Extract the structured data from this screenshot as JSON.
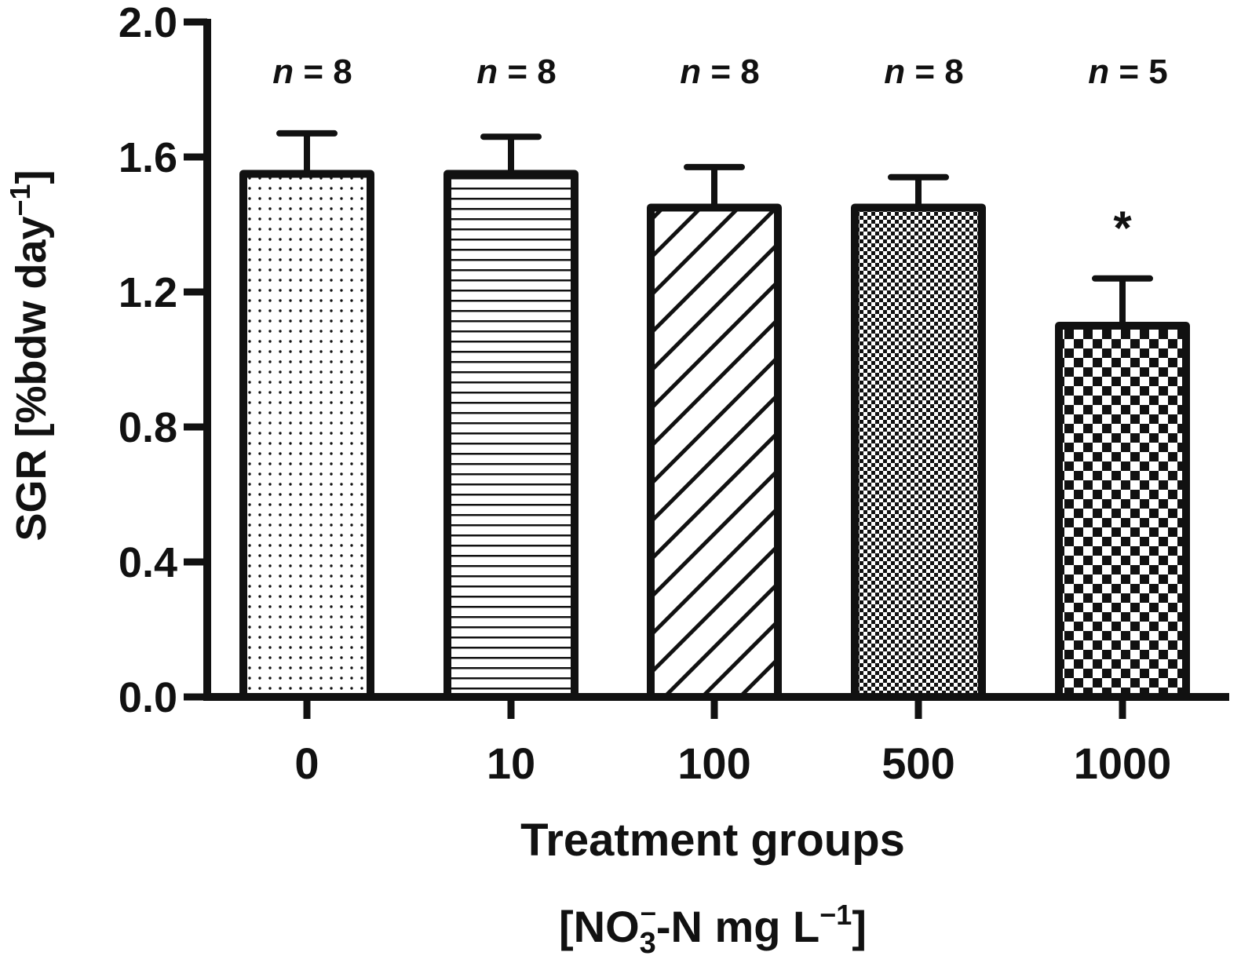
{
  "chart_data": {
    "type": "bar",
    "categories": [
      "0",
      "10",
      "100",
      "500",
      "1000"
    ],
    "values": [
      1.55,
      1.55,
      1.45,
      1.45,
      1.1
    ],
    "errors": [
      0.12,
      0.11,
      0.12,
      0.09,
      0.14
    ],
    "n_labels": [
      "8",
      "8",
      "8",
      "8",
      "5"
    ],
    "n_prefix": "n",
    "n_equals": " = ",
    "significance": [
      "",
      "",
      "",
      "",
      "*"
    ],
    "patterns": [
      "dots",
      "horizontal-lines",
      "diagonal-lines",
      "fine-checker",
      "coarse-checker"
    ],
    "ylabel": {
      "main": "SGR [%bdw day",
      "sup": "−1",
      "close": "]"
    },
    "xlabel": {
      "line1": "Treatment groups",
      "open": "[NO",
      "sub": "3",
      "sup": "–",
      "mid": "-N mg L",
      "sup2": "−1",
      "close": "]"
    },
    "yticks": [
      "0.0",
      "0.4",
      "0.8",
      "1.2",
      "1.6",
      "2.0"
    ],
    "ylim": [
      0,
      2.0
    ],
    "grid": false,
    "color": "#111111"
  }
}
